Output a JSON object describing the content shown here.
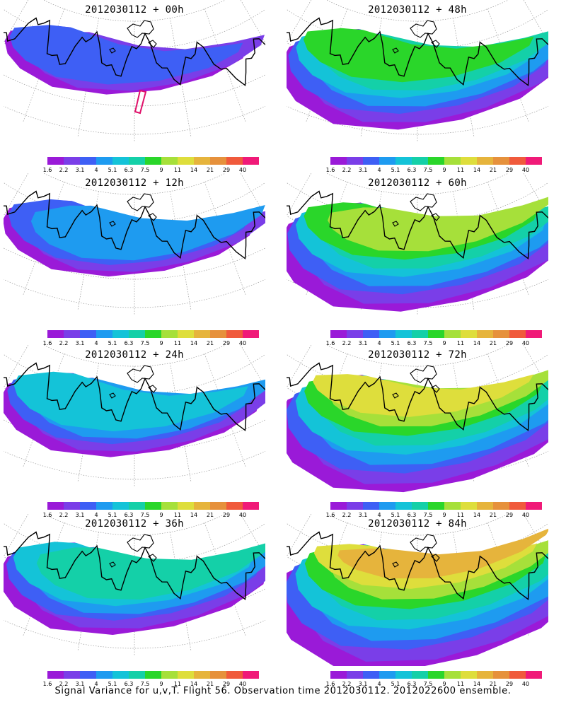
{
  "caption": "Signal Variance for u,v,T. Flight 56. Observation time 2012030112. 2012022600 ensemble.",
  "colorbar": {
    "labels": [
      "1.6",
      "2.2",
      "3.1",
      "4",
      "5.1",
      "6.3",
      "7.5",
      "9",
      "11",
      "14",
      "21",
      "29",
      "40"
    ],
    "colors": [
      "#9a1ad8",
      "#7a3ee8",
      "#3e5ff5",
      "#1e9bf0",
      "#14c3d8",
      "#14d0a8",
      "#2ad62a",
      "#a6e03a",
      "#dede3c",
      "#e6b43c",
      "#e6913c",
      "#f05a3c",
      "#f01a78"
    ]
  },
  "panels": [
    {
      "title": "2012030112 + 00h",
      "level": 0
    },
    {
      "title": "2012030112 + 48h",
      "level": 4
    },
    {
      "title": "2012030112 + 12h",
      "level": 1
    },
    {
      "title": "2012030112 + 60h",
      "level": 5
    },
    {
      "title": "2012030112 + 24h",
      "level": 2
    },
    {
      "title": "2012030112 + 72h",
      "level": 6
    },
    {
      "title": "2012030112 + 36h",
      "level": 3
    },
    {
      "title": "2012030112 + 84h",
      "level": 7
    }
  ]
}
